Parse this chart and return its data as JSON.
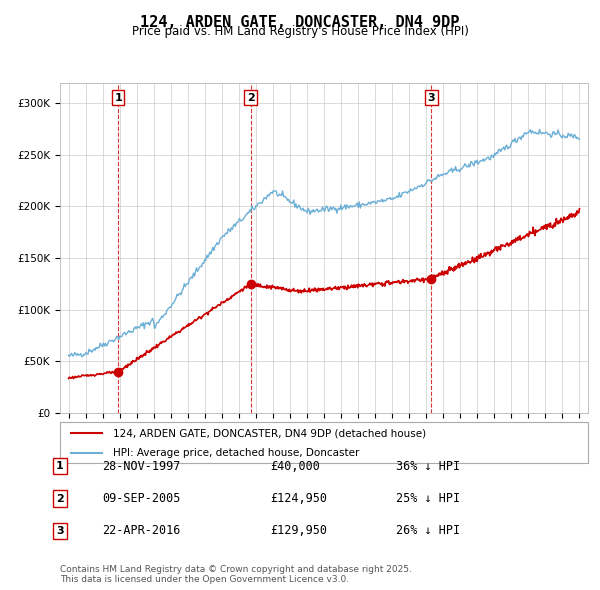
{
  "title": "124, ARDEN GATE, DONCASTER, DN4 9DP",
  "subtitle": "Price paid vs. HM Land Registry's House Price Index (HPI)",
  "legend_entry1": "124, ARDEN GATE, DONCASTER, DN4 9DP (detached house)",
  "legend_entry2": "HPI: Average price, detached house, Doncaster",
  "footer": "Contains HM Land Registry data © Crown copyright and database right 2025.\nThis data is licensed under the Open Government Licence v3.0.",
  "transactions": [
    {
      "num": 1,
      "date": "28-NOV-1997",
      "price": 40000,
      "pct": "36%",
      "x_year": 1997.91
    },
    {
      "num": 2,
      "date": "09-SEP-2005",
      "price": 124950,
      "pct": "25%",
      "x_year": 2005.69
    },
    {
      "num": 3,
      "date": "22-APR-2016",
      "price": 129950,
      "pct": "26%",
      "x_year": 2016.31
    }
  ],
  "hpi_color": "#6baed6",
  "price_color": "#cc0000",
  "dashed_color": "#cc0000",
  "ylim": [
    0,
    320000
  ],
  "yticks": [
    0,
    50000,
    100000,
    150000,
    200000,
    250000,
    300000
  ],
  "xlim_start": 1994.5,
  "xlim_end": 2025.5
}
